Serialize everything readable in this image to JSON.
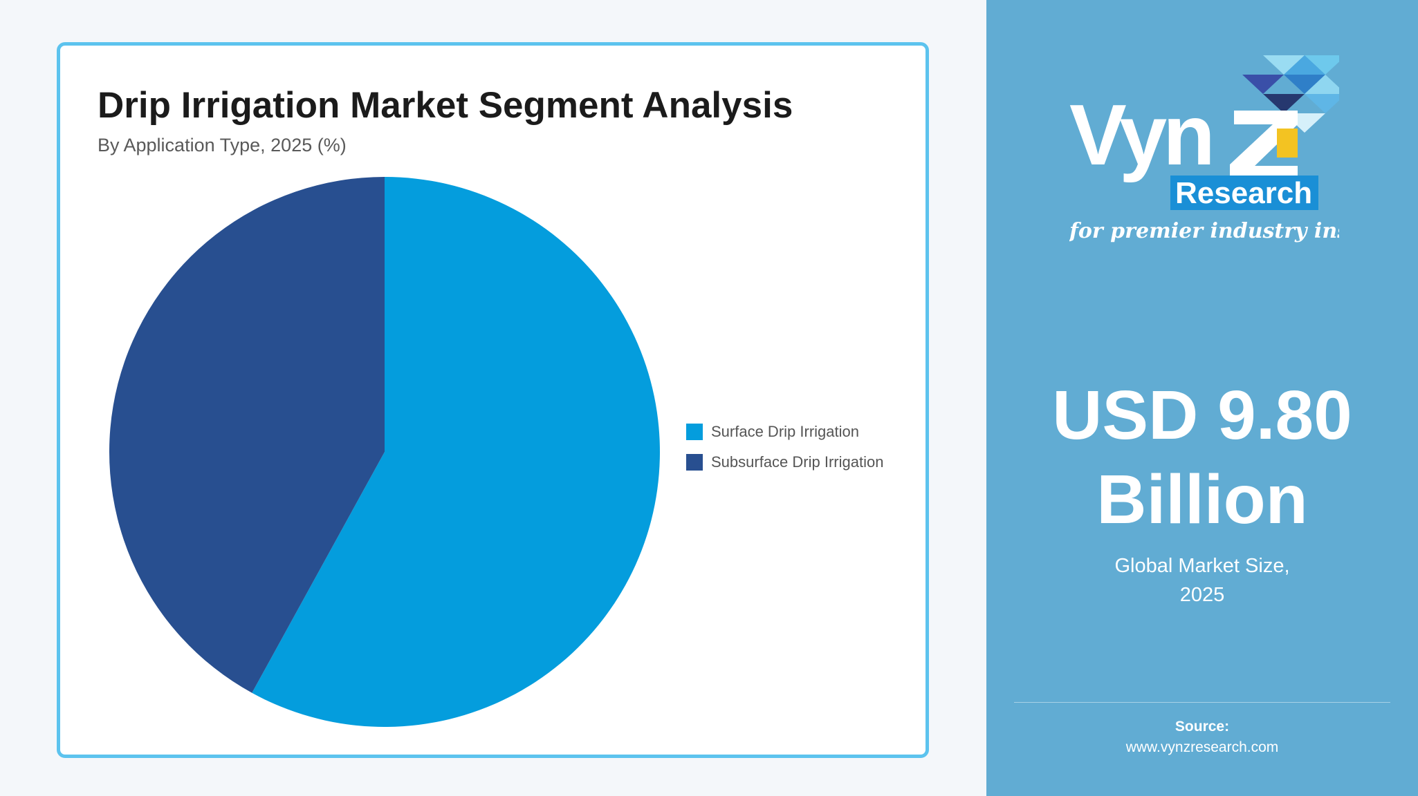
{
  "chart_data": {
    "type": "pie",
    "title": "Drip Irrigation Market Segment Analysis",
    "subtitle": "By Application Type, 2025 (%)",
    "categories": [
      "Surface Drip Irrigation",
      "Subsurface Drip Irrigation"
    ],
    "values": [
      58,
      42
    ],
    "colors": [
      "#049ddd",
      "#284f90"
    ],
    "legend_position": "right"
  },
  "legend": {
    "items": [
      {
        "label": "Surface Drip Irrigation",
        "color": "#049ddd"
      },
      {
        "label": "Subsurface Drip Irrigation",
        "color": "#284f90"
      }
    ]
  },
  "logo": {
    "name": "VynZ",
    "research": "Research",
    "tagline": "for premier industry insights"
  },
  "market": {
    "value_line1": "USD 9.80",
    "value_line2": "Billion",
    "caption_line1": "Global Market Size,",
    "caption_line2": "2025"
  },
  "source": {
    "label": "Source:",
    "url": "www.vynzresearch.com"
  },
  "colors": {
    "page_background": "#f4f7fa",
    "card_border": "#5cc3ee",
    "side_panel": "#61acd3"
  }
}
